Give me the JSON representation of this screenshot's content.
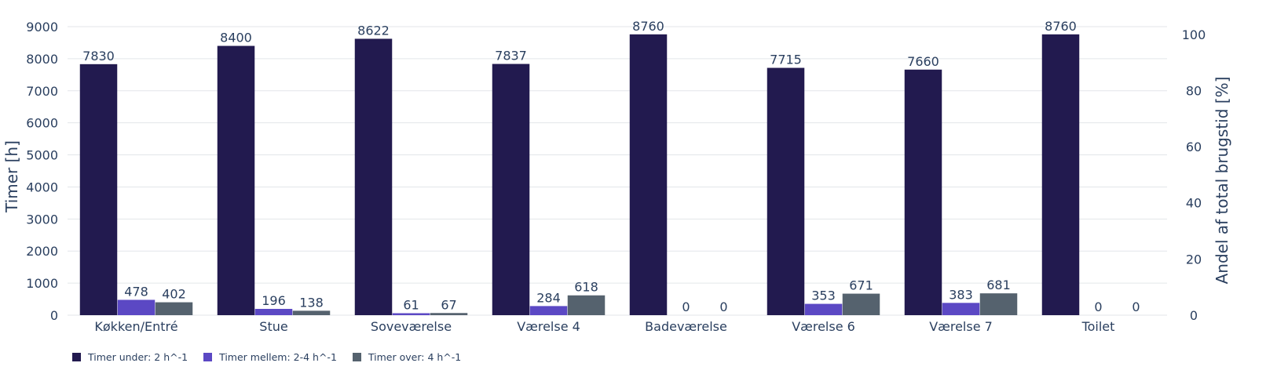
{
  "chart_data": {
    "type": "bar",
    "categories": [
      "Køkken/Entré",
      "Stue",
      "Soveværelse",
      "Værelse 4",
      "Badeværelse",
      "Værelse 6",
      "Værelse 7",
      "Toilet"
    ],
    "series": [
      {
        "name": "Timer under: 2 h^-1",
        "color": "#221a4f",
        "values": [
          7830,
          8400,
          8622,
          7837,
          8760,
          7715,
          7660,
          8760
        ]
      },
      {
        "name": "Timer mellem: 2-4 h^-1",
        "color": "#5b48c4",
        "values": [
          478,
          196,
          61,
          284,
          0,
          353,
          383,
          0
        ]
      },
      {
        "name": "Timer over: 4 h^-1",
        "color": "#55626e",
        "values": [
          402,
          138,
          67,
          618,
          0,
          671,
          681,
          0
        ]
      }
    ],
    "ylabel": "Timer [h]",
    "ylim": [
      0,
      9000
    ],
    "yticks": [
      0,
      1000,
      2000,
      3000,
      4000,
      5000,
      6000,
      7000,
      8000,
      9000
    ],
    "y2label": "Andel af total brugstid [%]",
    "y2lim": [
      0,
      107.2
    ],
    "y2ticks": [
      0,
      20,
      40,
      60,
      80,
      100
    ],
    "grid": true,
    "legend_position": "bottom-left"
  }
}
